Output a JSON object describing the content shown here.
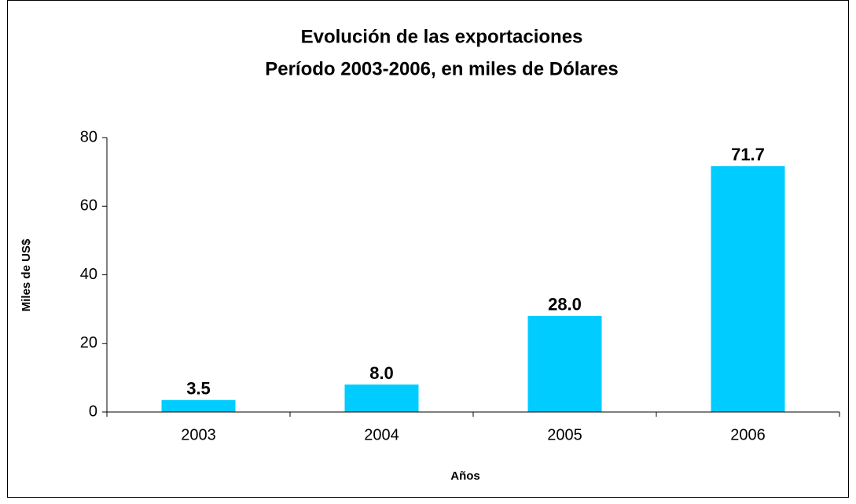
{
  "chart_data": {
    "type": "bar",
    "title": "Evolución de las exportaciones",
    "subtitle": "Período 2003-2006, en miles de Dólares",
    "x_label": "Años",
    "y_label": "Miles de US$",
    "categories": [
      "2003",
      "2004",
      "2005",
      "2006"
    ],
    "values": [
      3.5,
      8.0,
      28.0,
      71.7
    ],
    "value_labels": [
      "3.5",
      "8.0",
      "28.0",
      "71.7"
    ],
    "color": "#00ccff",
    "ylim": [
      0,
      80
    ],
    "yticks": [
      0,
      20,
      40,
      60,
      80
    ],
    "grid": false
  }
}
